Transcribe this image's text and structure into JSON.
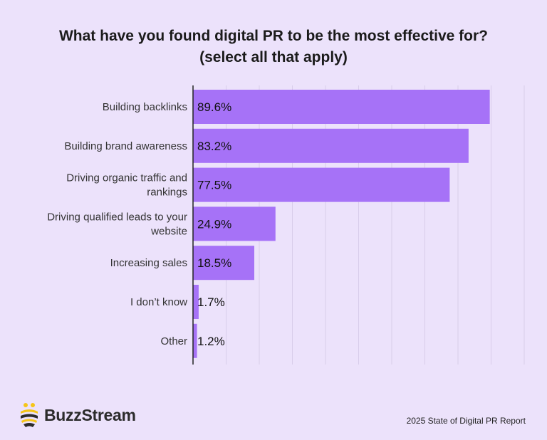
{
  "chart_data": {
    "type": "bar",
    "orientation": "horizontal",
    "title_lines": [
      "What have you found digital PR to be the most effective for?",
      "(select all that apply)"
    ],
    "categories": [
      [
        "Building backlinks"
      ],
      [
        "Building brand awareness"
      ],
      [
        "Driving organic traffic and",
        "rankings"
      ],
      [
        "Driving qualified leads to your",
        "website"
      ],
      [
        "Increasing sales"
      ],
      [
        "I don’t know"
      ],
      [
        "Other"
      ]
    ],
    "values": [
      89.6,
      83.2,
      77.5,
      24.9,
      18.5,
      1.7,
      1.2
    ],
    "value_labels": [
      "89.6%",
      "83.2%",
      "77.5%",
      "24.9%",
      "18.5%",
      "1.7%",
      "1.2%"
    ],
    "xlim": [
      0,
      100
    ],
    "grid": true,
    "bar_color": "#a672f7"
  },
  "brand": {
    "name": "BuzzStream",
    "icon": "bee-icon"
  },
  "source": "2025 State of Digital PR Report",
  "colors": {
    "background": "#ece2fb",
    "bar": "#a672f7",
    "bee_yellow": "#f5c518",
    "bee_dark": "#2b2b2b"
  }
}
